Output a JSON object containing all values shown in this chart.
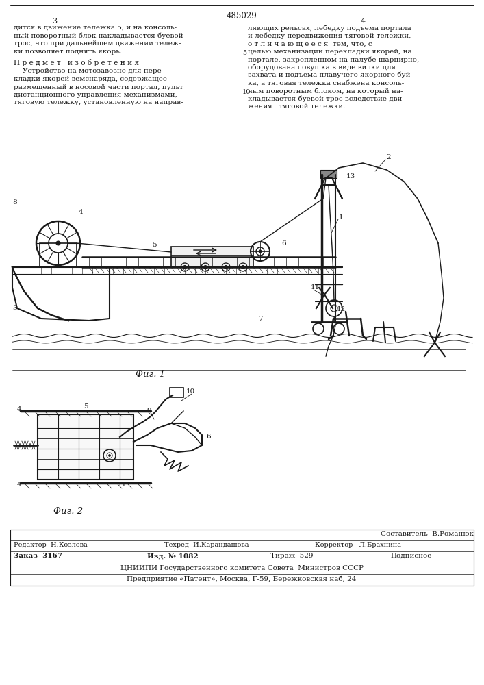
{
  "page_number_top": "485029",
  "col_left": "3",
  "col_right": "4",
  "text_top_left_lines": [
    "дится в движение тележка 5, и на консоль-",
    "ный поворотный блок накладывается буевой",
    "трос, что при дальнейшем движении тележ-",
    "ки позволяет поднять якорь."
  ],
  "title_predmet": "П р е д м е т   и з о б р е т е н и я",
  "text_predmet_lines": [
    "    Устройство на мотозавозне для пере-",
    "кладки якорей земснаряда, содержащее",
    "размещенный в носовой части портал, пульт",
    "дистанционного управления механизмами,",
    "тяговую тележку, установленную на направ-"
  ],
  "text_top_right_lines": [
    "ляющих рельсах, лебедку подъема портала",
    "и лебедку передвижения тяговой тележки,",
    "о т л и ч а ю щ е е с я  тем, что, с",
    "целью механизации перекладки якорей, на",
    "портале, закрепленном на палубе шарнирно,",
    "оборудована ловушка в виде вилки для",
    "захвата и подъема плавучего якорного буй-",
    "ка, а тяговая тележка снабжена консоль-",
    "ным поворотным блоком, на который на-",
    "кладывается буевой трос вследствие дви-",
    "жения   тяговой тележки."
  ],
  "num5_right": "5",
  "num10_right": "10",
  "fig1_label": "Фиг. 1",
  "fig2_label": "Фиг. 2",
  "footer_sostavitel": "Составитель  В.Романюк",
  "footer_redaktor": "Редактор  Н.Козлова",
  "footer_tehred": "Техред  И.Карандашова",
  "footer_korrektor": "Корректор   Л.Брахнина",
  "footer_zakaz": "Заказ  3167",
  "footer_izd": "Изд. № 1082",
  "footer_tirazh": "Тираж  529",
  "footer_podpisnoe": "Подписное",
  "footer_cniip": "ЦНИИПИ Государственного комитета Совета  Министров СССР",
  "footer_predpr": "Предприятие «Патент», Москва, Г-59, Бережковская наб, 24",
  "bg_color": "#ffffff",
  "text_color": "#1a1a1a",
  "line_color": "#1a1a1a"
}
